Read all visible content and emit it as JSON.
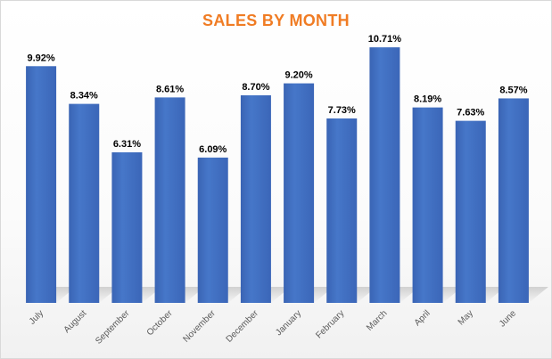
{
  "chart_data": {
    "type": "bar",
    "title": "SALES BY MONTH",
    "xlabel": "",
    "ylabel": "",
    "categories": [
      "July",
      "August",
      "September",
      "October",
      "November",
      "December",
      "January",
      "February",
      "March",
      "April",
      "May",
      "June"
    ],
    "values": [
      9.92,
      8.34,
      6.31,
      8.61,
      6.09,
      8.7,
      9.2,
      7.73,
      10.71,
      8.19,
      7.63,
      8.57
    ],
    "data_labels": [
      "9.92%",
      "8.34%",
      "6.31%",
      "8.61%",
      "6.09%",
      "8.70%",
      "9.20%",
      "7.73%",
      "10.71%",
      "8.19%",
      "7.63%",
      "8.57%"
    ],
    "ylim": [
      0,
      11.2
    ],
    "grid": false,
    "legend": "none",
    "colors": {
      "bar": "#4472c4",
      "title": "#f07c24"
    }
  }
}
